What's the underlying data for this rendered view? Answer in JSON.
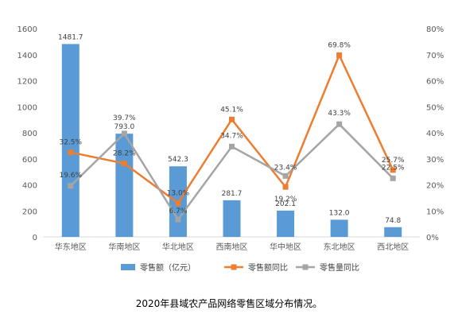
{
  "caption": "2020年县域农产品网络零售区域分布情况。",
  "chart_data": {
    "type": "bar",
    "categories": [
      "华东地区",
      "华南地区",
      "华北地区",
      "西南地区",
      "华中地区",
      "东北地区",
      "西北地区"
    ],
    "ylim_left": [
      0,
      1600
    ],
    "yticks_left": [
      "0",
      "200",
      "400",
      "600",
      "800",
      "1000",
      "1200",
      "1400",
      "1600"
    ],
    "ylim_right": [
      0,
      80
    ],
    "yticks_right": [
      "0%",
      "10%",
      "20%",
      "30%",
      "40%",
      "50%",
      "60%",
      "70%",
      "80%"
    ],
    "grid": false,
    "legend_position": "bottom",
    "series": [
      {
        "name": "零售额（亿元）",
        "kind": "bar",
        "axis": "left",
        "color": "#5B9BD5",
        "values": [
          1481.7,
          793.0,
          542.3,
          281.7,
          202.1,
          132.0,
          74.8
        ],
        "labels": [
          "1481.7",
          "793.0",
          "542.3",
          "281.7",
          "202.1",
          "132.0",
          "74.8"
        ]
      },
      {
        "name": "零售额同比",
        "kind": "line",
        "axis": "right",
        "color": "#ED7D31",
        "values": [
          32.5,
          28.2,
          13.0,
          45.1,
          19.2,
          69.8,
          25.7
        ],
        "labels": [
          "32.5%",
          "28.2%",
          "13.0%",
          "45.1%",
          "19.2%",
          "69.8%",
          "25.7%"
        ]
      },
      {
        "name": "零售量同比",
        "kind": "line",
        "axis": "right",
        "color": "#A5A5A5",
        "values": [
          19.6,
          39.7,
          6.7,
          34.7,
          23.4,
          43.3,
          22.5
        ],
        "labels": [
          "19.6%",
          "39.7%",
          "6.7%",
          "34.7%",
          "23.4%",
          "43.3%",
          "22.5%"
        ]
      }
    ]
  }
}
